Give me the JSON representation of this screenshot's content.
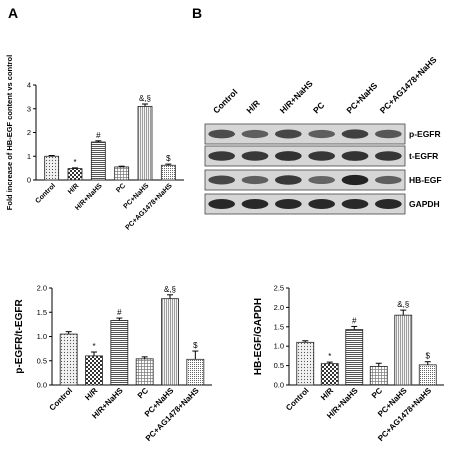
{
  "panel_labels": {
    "A": "A",
    "B": "B"
  },
  "chart_data": [
    {
      "id": "A",
      "type": "bar",
      "categories": [
        "Control",
        "H/R",
        "H/R+NaHS",
        "PC",
        "PC+NaHS",
        "PC+AG1478+NaHS"
      ],
      "values": [
        1.0,
        0.48,
        1.6,
        0.55,
        3.1,
        0.62
      ],
      "errors": [
        0.03,
        0.03,
        0.05,
        0.03,
        0.1,
        0.05
      ],
      "annotations": [
        "",
        "*",
        "#",
        "",
        "&,§",
        "$"
      ],
      "patterns": [
        "dots",
        "check",
        "hlines",
        "grid",
        "vlines",
        "dense"
      ],
      "ylabel": "Fold increase of HB-EGF content vs control",
      "ylim": [
        0,
        4
      ],
      "yticks": [
        0,
        1,
        2,
        3,
        4
      ],
      "ytick_labels": [
        "0",
        "1",
        "2",
        "3",
        "4"
      ]
    },
    {
      "id": "B-left",
      "type": "bar",
      "categories": [
        "Control",
        "H/R",
        "H/R+NaHS",
        "PC",
        "PC+NaHS",
        "PC+AG1478+NaHS"
      ],
      "values": [
        1.05,
        0.6,
        1.33,
        0.54,
        1.78,
        0.53
      ],
      "errors": [
        0.05,
        0.08,
        0.05,
        0.04,
        0.08,
        0.17
      ],
      "annotations": [
        "",
        "*",
        "#",
        "",
        "&,§",
        "$"
      ],
      "patterns": [
        "dots",
        "check",
        "hlines",
        "grid",
        "vlines",
        "dense"
      ],
      "ylabel": "p-EGFR/t-EGFR",
      "ylim": [
        0,
        2.0
      ],
      "yticks": [
        0,
        0.5,
        1.0,
        1.5,
        2.0
      ],
      "ytick_labels": [
        "0.0",
        "0.5",
        "1.0",
        "1.5",
        "2.0"
      ]
    },
    {
      "id": "B-right",
      "type": "bar",
      "categories": [
        "Control",
        "H/R",
        "H/R+NaHS",
        "PC",
        "PC+NaHS",
        "PC+AG1478+NaHS"
      ],
      "values": [
        1.1,
        0.55,
        1.43,
        0.48,
        1.8,
        0.52
      ],
      "errors": [
        0.04,
        0.04,
        0.08,
        0.08,
        0.13,
        0.08
      ],
      "annotations": [
        "",
        "*",
        "#",
        "",
        "&,§",
        "$"
      ],
      "patterns": [
        "dots",
        "check",
        "hlines",
        "grid",
        "vlines",
        "dense"
      ],
      "ylabel": "HB-EGF/GAPDH",
      "ylim": [
        0,
        2.5
      ],
      "yticks": [
        0,
        0.5,
        1.0,
        1.5,
        2.0,
        2.5
      ],
      "ytick_labels": [
        "0.0",
        "0.5",
        "1.0",
        "1.5",
        "2.0",
        "2.5"
      ]
    }
  ],
  "blot": {
    "lanes": [
      "Control",
      "H/R",
      "H/R+NaHS",
      "PC",
      "PC+NaHS",
      "PC+AG1478+NaHS"
    ],
    "rows": [
      "p-EGFR",
      "t-EGFR",
      "HB-EGF",
      "GAPDH"
    ],
    "intensity": [
      [
        0.55,
        0.45,
        0.6,
        0.45,
        0.65,
        0.5
      ],
      [
        0.7,
        0.7,
        0.75,
        0.72,
        0.75,
        0.72
      ],
      [
        0.6,
        0.45,
        0.7,
        0.4,
        0.85,
        0.45
      ],
      [
        0.8,
        0.8,
        0.8,
        0.8,
        0.8,
        0.8
      ]
    ]
  }
}
